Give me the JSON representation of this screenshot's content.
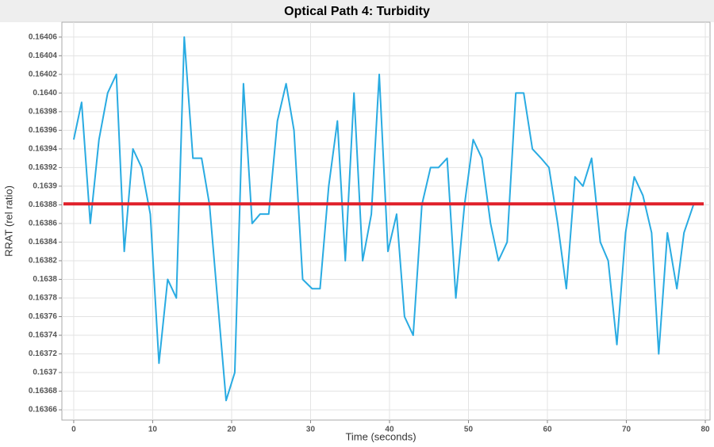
{
  "chart_data": {
    "type": "line",
    "title": "Optical Path 4: Turbidity",
    "x_label": "Time (seconds)",
    "y_label": "RRAT (rel ratio)",
    "xlim": [
      -1.5,
      80.6
    ],
    "xticks": [
      0,
      10,
      20,
      30,
      40,
      50,
      60,
      70,
      80
    ],
    "ylim": [
      0.163649,
      0.164076
    ],
    "yticks": [
      0.16366,
      0.16368,
      0.1637,
      0.16372,
      0.16374,
      0.16376,
      0.16378,
      0.1638,
      0.16382,
      0.16384,
      0.16386,
      0.16388,
      0.1639,
      0.16392,
      0.16394,
      0.16396,
      0.16398,
      {
        "value": 0.164,
        "label": "0.1640"
      },
      0.16402,
      0.16404,
      0.16406
    ],
    "grid": true,
    "series": [
      {
        "color": "#29abe2",
        "x": [
          0,
          1.0,
          2.1,
          3.2,
          4.3,
          5.4,
          6.4,
          7.5,
          8.6,
          9.7,
          10.8,
          11.9,
          13.0,
          14.0,
          15.1,
          16.2,
          17.2,
          19.3,
          20.4,
          21.5,
          22.6,
          23.6,
          24.7,
          25.8,
          26.9,
          27.9,
          29.0,
          30.2,
          31.2,
          32.3,
          33.4,
          34.4,
          35.5,
          36.6,
          37.7,
          38.7,
          39.8,
          40.9,
          41.9,
          43.0,
          44.1,
          45.2,
          46.2,
          47.3,
          48.4,
          49.5,
          50.6,
          51.7,
          52.8,
          53.8,
          54.9,
          56.0,
          57.0,
          58.1,
          59.2,
          60.2,
          61.3,
          62.4,
          63.5,
          64.5,
          65.6,
          66.7,
          67.7,
          68.8,
          69.9,
          71.0,
          72.1,
          73.2,
          74.1,
          75.2,
          76.4,
          77.3,
          78.5
        ],
        "values": [
          0.16395,
          0.16399,
          0.16386,
          0.16395,
          0.164,
          0.16402,
          0.16383,
          0.16394,
          0.16392,
          0.16387,
          0.16371,
          0.1638,
          0.16378,
          0.16406,
          0.16393,
          0.16393,
          0.16388,
          0.16367,
          0.1637,
          0.16401,
          0.16386,
          0.16387,
          0.16387,
          0.16397,
          0.16401,
          0.16396,
          0.1638,
          0.16379,
          0.16379,
          0.1639,
          0.16397,
          0.16382,
          0.164,
          0.16382,
          0.16387,
          0.16402,
          0.16383,
          0.16387,
          0.16376,
          0.16374,
          0.16388,
          0.16392,
          0.16392,
          0.16393,
          0.16378,
          0.16388,
          0.16395,
          0.16393,
          0.16386,
          0.16382,
          0.16384,
          0.164,
          0.164,
          0.16394,
          0.16393,
          0.16392,
          0.16386,
          0.16379,
          0.16391,
          0.1639,
          0.16393,
          0.16384,
          0.16382,
          0.16373,
          0.16385,
          0.16391,
          0.16389,
          0.16385,
          0.16372,
          0.16385,
          0.16379,
          0.16385,
          0.16388
        ]
      },
      {
        "color": "#e0202a",
        "x": [
          -1.3,
          79.8
        ],
        "values": [
          0.163881,
          0.163881
        ]
      }
    ]
  }
}
